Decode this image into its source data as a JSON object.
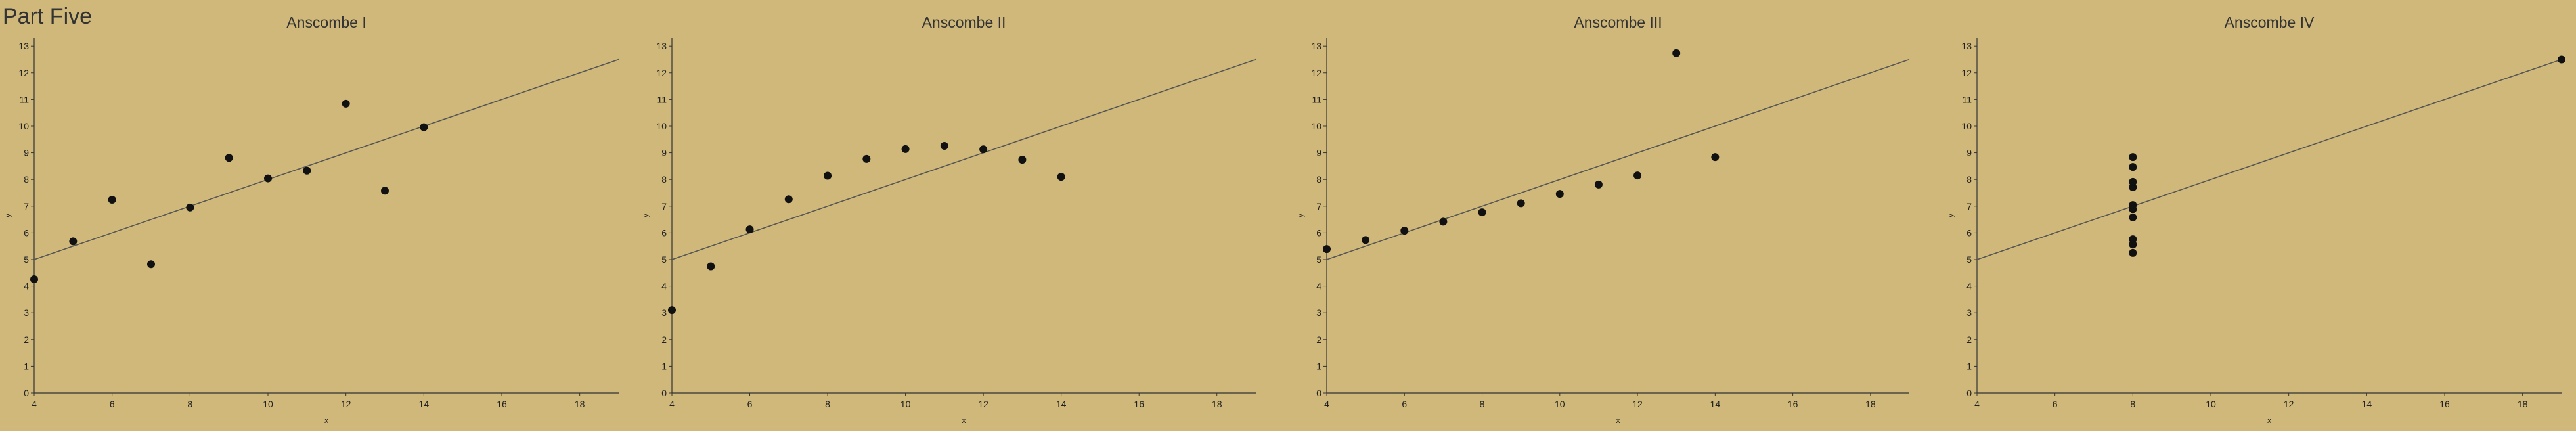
{
  "page": {
    "title": "Part Five"
  },
  "colors": {
    "background": "#CFB87A",
    "point": "#111111",
    "line": "#555555",
    "axis": "#333333"
  },
  "chart_data": [
    {
      "type": "scatter",
      "title": "Anscombe I",
      "xlabel": "x",
      "ylabel": "y",
      "xlim": [
        4,
        19
      ],
      "ylim": [
        0,
        13.3
      ],
      "xticks": [
        4,
        6,
        8,
        10,
        12,
        14,
        16,
        18
      ],
      "yticks": [
        0,
        1,
        2,
        3,
        4,
        5,
        6,
        7,
        8,
        9,
        10,
        11,
        12,
        13
      ],
      "grid": false,
      "x": [
        10,
        8,
        13,
        9,
        11,
        14,
        6,
        4,
        12,
        7,
        5
      ],
      "y": [
        8.04,
        6.95,
        7.58,
        8.81,
        8.33,
        9.96,
        7.24,
        4.26,
        10.84,
        4.82,
        5.68
      ],
      "trend_line": {
        "intercept": 3.0,
        "slope": 0.5
      }
    },
    {
      "type": "scatter",
      "title": "Anscombe II",
      "xlabel": "x",
      "ylabel": "y",
      "xlim": [
        4,
        19
      ],
      "ylim": [
        0,
        13.3
      ],
      "xticks": [
        4,
        6,
        8,
        10,
        12,
        14,
        16,
        18
      ],
      "yticks": [
        0,
        1,
        2,
        3,
        4,
        5,
        6,
        7,
        8,
        9,
        10,
        11,
        12,
        13
      ],
      "grid": false,
      "x": [
        10,
        8,
        13,
        9,
        11,
        14,
        6,
        4,
        12,
        7,
        5
      ],
      "y": [
        9.14,
        8.14,
        8.74,
        8.77,
        9.26,
        8.1,
        6.13,
        3.1,
        9.13,
        7.26,
        4.74
      ],
      "trend_line": {
        "intercept": 3.0,
        "slope": 0.5
      }
    },
    {
      "type": "scatter",
      "title": "Anscombe III",
      "xlabel": "x",
      "ylabel": "y",
      "xlim": [
        4,
        19
      ],
      "ylim": [
        0,
        13.3
      ],
      "xticks": [
        4,
        6,
        8,
        10,
        12,
        14,
        16,
        18
      ],
      "yticks": [
        0,
        1,
        2,
        3,
        4,
        5,
        6,
        7,
        8,
        9,
        10,
        11,
        12,
        13
      ],
      "grid": false,
      "x": [
        10,
        8,
        13,
        9,
        11,
        14,
        6,
        4,
        12,
        7,
        5
      ],
      "y": [
        7.46,
        6.77,
        12.74,
        7.11,
        7.81,
        8.84,
        6.08,
        5.39,
        8.15,
        6.42,
        5.73
      ],
      "trend_line": {
        "intercept": 3.0,
        "slope": 0.5
      }
    },
    {
      "type": "scatter",
      "title": "Anscombe IV",
      "xlabel": "x",
      "ylabel": "y",
      "xlim": [
        4,
        19
      ],
      "ylim": [
        0,
        13.3
      ],
      "xticks": [
        4,
        6,
        8,
        10,
        12,
        14,
        16,
        18
      ],
      "yticks": [
        0,
        1,
        2,
        3,
        4,
        5,
        6,
        7,
        8,
        9,
        10,
        11,
        12,
        13
      ],
      "grid": false,
      "x": [
        8,
        8,
        8,
        8,
        8,
        8,
        8,
        19,
        8,
        8,
        8
      ],
      "y": [
        6.58,
        5.76,
        7.71,
        8.84,
        8.47,
        7.04,
        5.25,
        12.5,
        5.56,
        7.91,
        6.89
      ],
      "trend_line": {
        "intercept": 3.0,
        "slope": 0.5
      }
    }
  ]
}
